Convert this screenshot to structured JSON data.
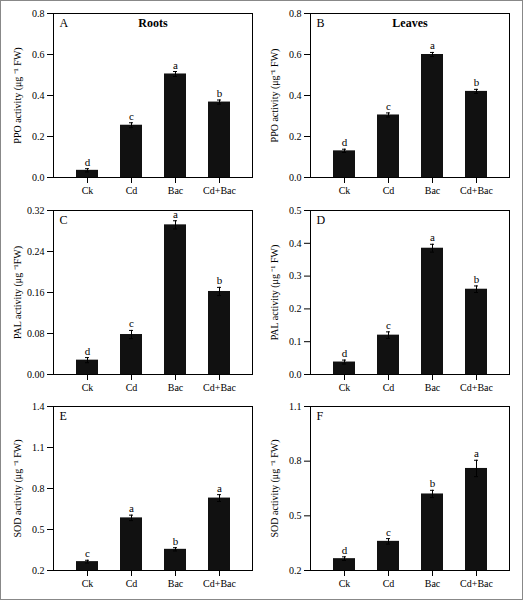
{
  "chart_data": [
    {
      "type": "bar",
      "panel_label": "A",
      "title": "Roots",
      "ylabel": "PPO activity (μg ⁻¹ FW)",
      "categories": [
        "Ck",
        "Cd",
        "Bac",
        "Cd+Bac"
      ],
      "values": [
        0.035,
        0.255,
        0.505,
        0.368
      ],
      "errors": [
        0.008,
        0.012,
        0.012,
        0.01
      ],
      "letters": [
        "d",
        "c",
        "a",
        "b"
      ],
      "color": "#111111",
      "ylim": [
        0,
        0.8
      ],
      "yticks": [
        {
          "value": 0,
          "label": "0.0"
        },
        0.2,
        0.4,
        0.6,
        0.8
      ],
      "grid": false
    },
    {
      "type": "bar",
      "panel_label": "B",
      "title": "Leaves",
      "ylabel": "PPO activity (μg⁻¹ FW)",
      "categories": [
        "Ck",
        "Cd",
        "Bac",
        "Cd+Bac"
      ],
      "values": [
        0.13,
        0.305,
        0.6,
        0.42
      ],
      "errors": [
        0.008,
        0.01,
        0.01,
        0.01
      ],
      "letters": [
        "d",
        "c",
        "a",
        "b"
      ],
      "color": "#111111",
      "ylim": [
        0,
        0.8
      ],
      "yticks": [
        {
          "value": 0,
          "label": "0.0"
        },
        0.2,
        0.4,
        0.6,
        0.8
      ],
      "grid": false
    },
    {
      "type": "bar",
      "panel_label": "C",
      "ylabel": "PAL activity (μg ⁻¹FW)",
      "categories": [
        "Ck",
        "Cd",
        "Bac",
        "Cd+Bac"
      ],
      "values": [
        0.028,
        0.078,
        0.292,
        0.162
      ],
      "errors": [
        0.005,
        0.008,
        0.008,
        0.008
      ],
      "letters": [
        "d",
        "c",
        "a",
        "b"
      ],
      "color": "#111111",
      "ylim": [
        0,
        0.32
      ],
      "yticks": [
        {
          "value": 0,
          "label": "0.00"
        },
        0.08,
        0.16,
        0.24,
        0.32
      ],
      "grid": false
    },
    {
      "type": "bar",
      "panel_label": "D",
      "ylabel": "PAL activity (μg ⁻¹ FW)",
      "categories": [
        "Ck",
        "Cd",
        "Bac",
        "Cd+Bac"
      ],
      "values": [
        0.038,
        0.12,
        0.385,
        0.26
      ],
      "errors": [
        0.006,
        0.01,
        0.012,
        0.01
      ],
      "letters": [
        "d",
        "c",
        "a",
        "b"
      ],
      "color": "#111111",
      "ylim": [
        0,
        0.5
      ],
      "yticks": [
        {
          "value": 0,
          "label": "0.0"
        },
        0.1,
        0.2,
        0.3,
        0.4,
        0.5
      ],
      "grid": false
    },
    {
      "type": "bar",
      "panel_label": "E",
      "ylabel": "SOD activity (μg ⁻¹ FW)",
      "categories": [
        "Ck",
        "Cd",
        "Bac",
        "Cd+Bac"
      ],
      "values": [
        0.265,
        0.585,
        0.355,
        0.73
      ],
      "errors": [
        0.01,
        0.02,
        0.012,
        0.025
      ],
      "letters": [
        "c",
        "a",
        "b",
        "a"
      ],
      "color": "#111111",
      "ylim": [
        0.2,
        1.4
      ],
      "yticks": [
        0.2,
        0.5,
        0.8,
        1.1,
        1.4
      ],
      "grid": false
    },
    {
      "type": "bar",
      "panel_label": "F",
      "ylabel": "SOD activity (μg ⁻¹ FW)",
      "categories": [
        "Ck",
        "Cd",
        "Bac",
        "Cd+Bac"
      ],
      "values": [
        0.265,
        0.36,
        0.62,
        0.76
      ],
      "errors": [
        0.01,
        0.015,
        0.02,
        0.045
      ],
      "letters": [
        "d",
        "c",
        "b",
        "a"
      ],
      "color": "#111111",
      "ylim": [
        0.2,
        1.1
      ],
      "yticks": [
        0.2,
        0.5,
        0.8,
        1.1
      ],
      "grid": false
    }
  ]
}
